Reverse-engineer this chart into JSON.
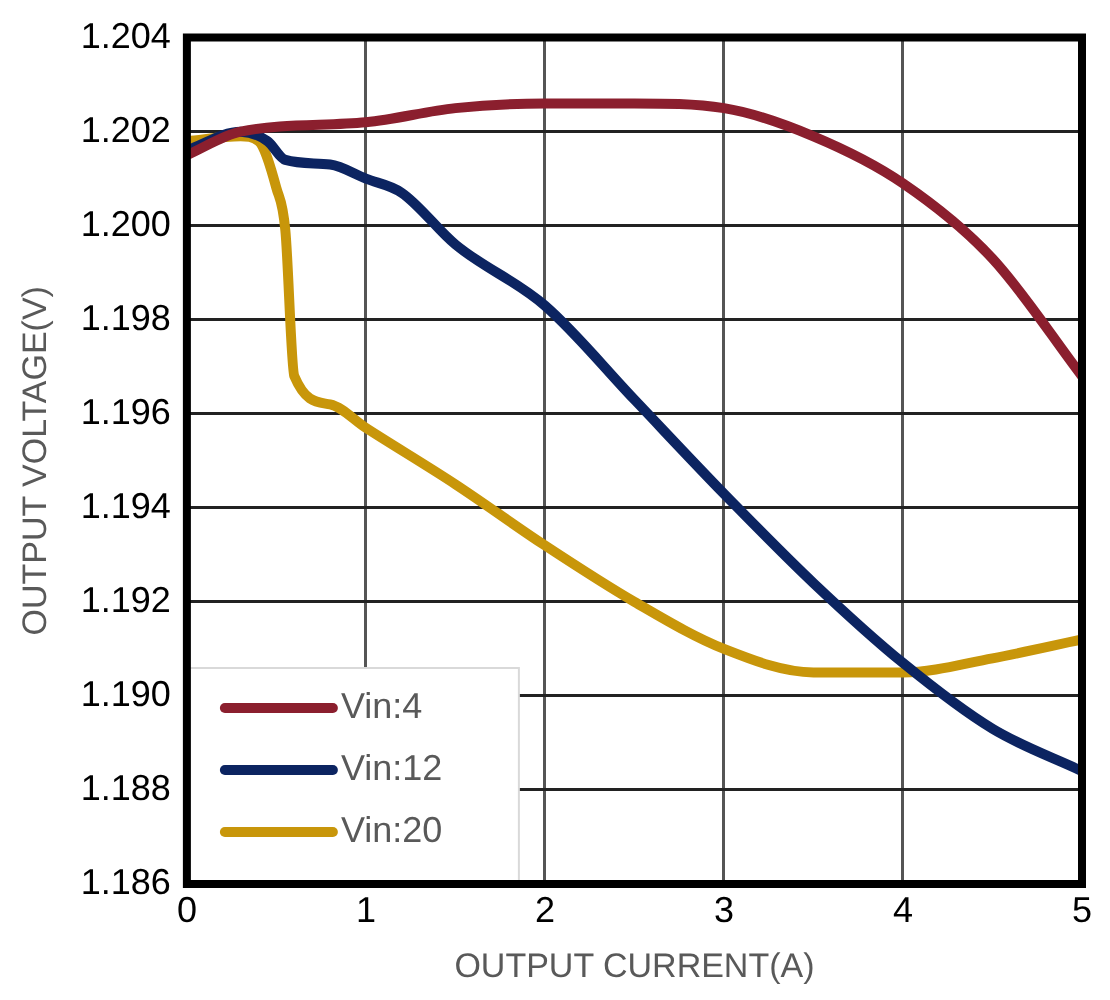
{
  "chart_data": {
    "type": "line",
    "xlabel": "OUTPUT CURRENT(A)",
    "ylabel": "OUTPUT VOLTAGE(V)",
    "xlim": [
      0,
      5
    ],
    "xticks": [
      0,
      1,
      2,
      3,
      4,
      5
    ],
    "ylim": [
      1.186,
      1.204
    ],
    "yticks": [
      1.186,
      1.188,
      {
        "value": 1.19,
        "label": "1.190"
      },
      1.192,
      1.194,
      1.196,
      1.198,
      {
        "value": 1.2,
        "label": "1.200"
      },
      1.202,
      1.204
    ],
    "grid": true,
    "legend": "bottom left",
    "marker": "none",
    "line_style": "solid",
    "series": [
      {
        "name": "Vin:4",
        "color": "#8b1f2e",
        "x": [
          0,
          0.3,
          1,
          1.5,
          2,
          2.5,
          3,
          3.5,
          4,
          4.5,
          5
        ],
        "values": [
          1.2015,
          1.202,
          1.2022,
          1.2025,
          1.2026,
          1.2026,
          1.2025,
          1.2019,
          1.2009,
          1.1993,
          1.1968
        ]
      },
      {
        "name": "Vin:12",
        "color": "#0c2461",
        "x": [
          0,
          0.3,
          0.45,
          0.55,
          0.8,
          1,
          1.2,
          1.5,
          2,
          2.5,
          3,
          3.5,
          4,
          4.5,
          5
        ],
        "values": [
          1.2016,
          1.202,
          1.2018,
          1.2014,
          1.2013,
          1.201,
          1.2007,
          1.1996,
          1.1983,
          1.1963,
          1.1943,
          1.1924,
          1.1907,
          1.1893,
          1.1884
        ]
      },
      {
        "name": "Vin:20",
        "color": "#c8960a",
        "x": [
          0,
          0.3,
          0.4,
          0.5,
          0.55,
          0.6,
          0.8,
          1,
          1.5,
          2,
          2.5,
          3,
          3.5,
          4,
          4.5,
          5
        ],
        "values": [
          1.2018,
          1.2019,
          1.2018,
          1.2008,
          1.1999,
          1.1968,
          1.1962,
          1.1957,
          1.1945,
          1.1932,
          1.192,
          1.191,
          1.1905,
          1.1905,
          1.1908,
          1.1912
        ]
      }
    ]
  }
}
